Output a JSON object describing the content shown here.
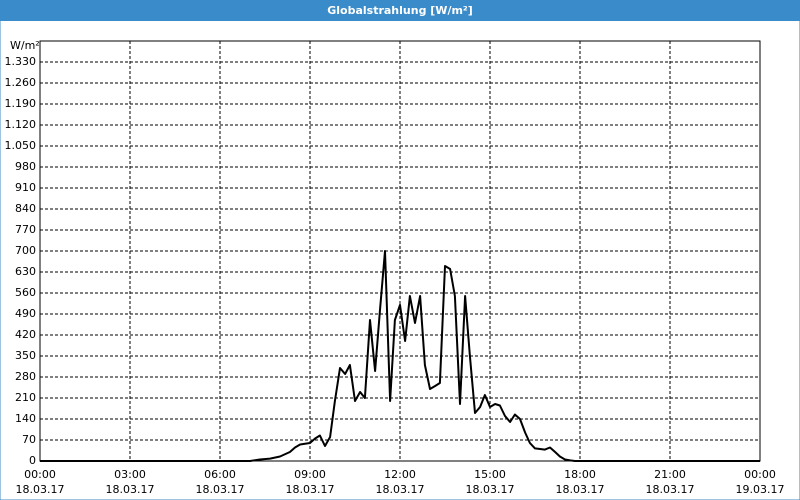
{
  "chart_data": {
    "type": "line",
    "title": "Globalstrahlung [W/m²]",
    "y_label": "W/m²",
    "x": [
      0,
      7,
      7.33,
      7.67,
      8,
      8.33,
      8.5,
      8.67,
      9,
      9.17,
      9.33,
      9.5,
      9.67,
      9.83,
      10,
      10.17,
      10.33,
      10.5,
      10.67,
      10.83,
      11,
      11.17,
      11.33,
      11.5,
      11.67,
      11.83,
      12,
      12.17,
      12.33,
      12.5,
      12.67,
      12.83,
      13,
      13.17,
      13.33,
      13.5,
      13.67,
      13.83,
      14,
      14.17,
      14.33,
      14.5,
      14.67,
      14.83,
      15,
      15.17,
      15.33,
      15.5,
      15.67,
      15.83,
      16,
      16.17,
      16.33,
      16.5,
      16.67,
      16.83,
      17,
      17.17,
      17.33,
      17.5,
      17.67,
      17.83,
      24
    ],
    "series": [
      {
        "color": "#000000",
        "values": [
          0,
          0,
          5,
          8,
          15,
          30,
          45,
          55,
          60,
          75,
          85,
          50,
          80,
          200,
          310,
          290,
          320,
          200,
          230,
          210,
          470,
          300,
          500,
          700,
          200,
          470,
          520,
          400,
          550,
          460,
          550,
          320,
          240,
          250,
          260,
          650,
          640,
          550,
          190,
          550,
          350,
          160,
          180,
          220,
          180,
          190,
          185,
          150,
          130,
          155,
          140,
          95,
          60,
          42,
          40,
          38,
          45,
          30,
          15,
          5,
          2,
          0,
          0
        ]
      }
    ],
    "xlim": [
      0,
      24
    ],
    "xticks": [
      {
        "value": 0,
        "label": "00:00",
        "date": "18.03.17"
      },
      {
        "value": 3,
        "label": "03:00",
        "date": "18.03.17"
      },
      {
        "value": 6,
        "label": "06:00",
        "date": "18.03.17"
      },
      {
        "value": 9,
        "label": "09:00",
        "date": "18.03.17"
      },
      {
        "value": 12,
        "label": "12:00",
        "date": "18.03.17"
      },
      {
        "value": 15,
        "label": "15:00",
        "date": "18.03.17"
      },
      {
        "value": 18,
        "label": "18:00",
        "date": "18.03.17"
      },
      {
        "value": 21,
        "label": "21:00",
        "date": "18.03.17"
      },
      {
        "value": 24,
        "label": "00:00",
        "date": "19.03.17"
      }
    ],
    "ylim": [
      0,
      1400
    ],
    "yticks": [
      0,
      70,
      140,
      210,
      280,
      350,
      420,
      490,
      560,
      630,
      700,
      770,
      840,
      910,
      980,
      {
        "value": 1050,
        "label": "1.050"
      },
      {
        "value": 1120,
        "label": "1.120"
      },
      {
        "value": 1190,
        "label": "1.190"
      },
      {
        "value": 1260,
        "label": "1.260"
      },
      {
        "value": 1330,
        "label": "1.330"
      }
    ],
    "grid": true
  }
}
